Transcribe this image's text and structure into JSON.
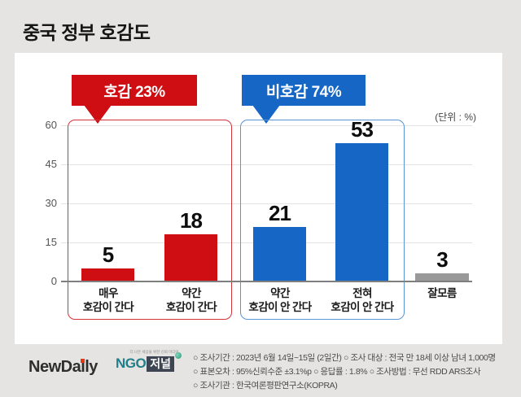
{
  "page": {
    "title": "중국 정부 호감도",
    "unit_label": "(단위 : %)",
    "background_color": "#e5e4e2"
  },
  "badges": {
    "favorable": {
      "label": "호감 23%",
      "color": "#ce0e12"
    },
    "unfavorable": {
      "label": "비호감 74%",
      "color": "#1667c5"
    }
  },
  "chart_data": {
    "type": "bar",
    "title": "중국 정부 호감도",
    "unit": "%",
    "categories": [
      "매우 호감이 간다",
      "약간 호감이 간다",
      "약간 호감이 안 간다",
      "전혀 호감이 안 간다",
      "잘모름"
    ],
    "category_lines": [
      [
        "매우",
        "호감이 간다"
      ],
      [
        "약간",
        "호감이 간다"
      ],
      [
        "약간",
        "호감이 안 간다"
      ],
      [
        "전혀",
        "호감이 안 간다"
      ],
      [
        "잘모름"
      ]
    ],
    "values": [
      5,
      18,
      21,
      53,
      3
    ],
    "colors": [
      "#ce0e12",
      "#ce0e12",
      "#1667c5",
      "#1667c5",
      "#999999"
    ],
    "groups": [
      {
        "label": "호감 23%",
        "total": 23,
        "color": "#ce0e12",
        "bar_indexes": [
          0,
          1
        ]
      },
      {
        "label": "비호감 74%",
        "total": 74,
        "color": "#1667c5",
        "bar_indexes": [
          2,
          3
        ]
      }
    ],
    "yticks": [
      0,
      15,
      30,
      45,
      60
    ],
    "ylim": [
      0,
      62
    ],
    "grid": true,
    "legend_position": "none"
  },
  "footer": {
    "logo_newdaily": "NewDaily",
    "logo_ngo_prefix": "NGO",
    "logo_ngo_suffix": "저널",
    "logo_ngo_tagline": "더 나은 세상을 위한 신뢰 미디어",
    "survey_lines": [
      "○ 조사기간 : 2023년 6월 14일~15일 (2일간) ○ 조사 대상 : 전국 만 18세 이상 남녀 1,000명",
      "○ 표본오차 : 95%신뢰수준 ±3.1%p ○ 응답률 : 1.8% ○ 조사방법 : 무선 RDD ARS조사",
      "○ 조사기관 : 한국여론평판연구소(KOPRA)"
    ]
  }
}
